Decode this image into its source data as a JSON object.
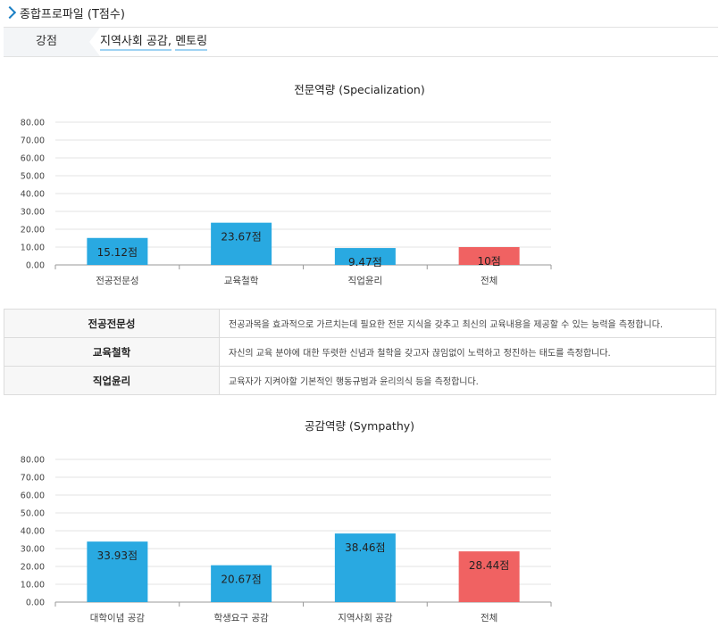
{
  "header": {
    "title": "종합프로파일 (T점수)"
  },
  "strength": {
    "label": "강점",
    "values": [
      "지역사회 공감",
      "멘토링"
    ],
    "separator": ","
  },
  "colors": {
    "bar": "#29a9e1",
    "total_bar": "#f06262",
    "grid": "#e3e3e3",
    "axis": "#999999"
  },
  "chart_data": [
    {
      "type": "bar",
      "title": "전문역량 (Specialization)",
      "categories": [
        "전공전문성",
        "교육철학",
        "직업윤리",
        "전체"
      ],
      "values": [
        15.12,
        23.67,
        9.47,
        10
      ],
      "value_labels": [
        "15.12점",
        "23.67점",
        "9.47점",
        "10점"
      ],
      "yticks": [
        "0.00",
        "10.00",
        "20.00",
        "30.00",
        "40.00",
        "50.00",
        "60.00",
        "70.00",
        "80.00"
      ],
      "ylim": [
        0,
        80
      ],
      "grid": true,
      "xlabel": "",
      "ylabel": ""
    },
    {
      "type": "bar",
      "title": "공감역량 (Sympathy)",
      "categories": [
        "대학이념 공감",
        "학생요구 공감",
        "지역사회 공감",
        "전체"
      ],
      "values": [
        33.93,
        20.67,
        38.46,
        28.44
      ],
      "value_labels": [
        "33.93점",
        "20.67점",
        "38.46점",
        "28.44점"
      ],
      "yticks": [
        "0.00",
        "10.00",
        "20.00",
        "30.00",
        "40.00",
        "50.00",
        "60.00",
        "70.00",
        "80.00"
      ],
      "ylim": [
        0,
        80
      ],
      "grid": true,
      "xlabel": "",
      "ylabel": ""
    }
  ],
  "table": {
    "rows": [
      {
        "key": "전공전문성",
        "desc": "전공과목을 효과적으로 가르치는데 필요한 전문 지식을 갖추고 최신의 교육내용을 제공할 수 있는 능력을 측정합니다."
      },
      {
        "key": "교육철학",
        "desc": "자신의 교육 분야에 대한 뚜렷한 신념과 철학을 갖고자 끊임없이 노력하고 정진하는 태도를 측정합니다."
      },
      {
        "key": "직업윤리",
        "desc": "교육자가 지켜야할 기본적인 행동규범과 윤리의식 등을 측정합니다."
      }
    ]
  }
}
